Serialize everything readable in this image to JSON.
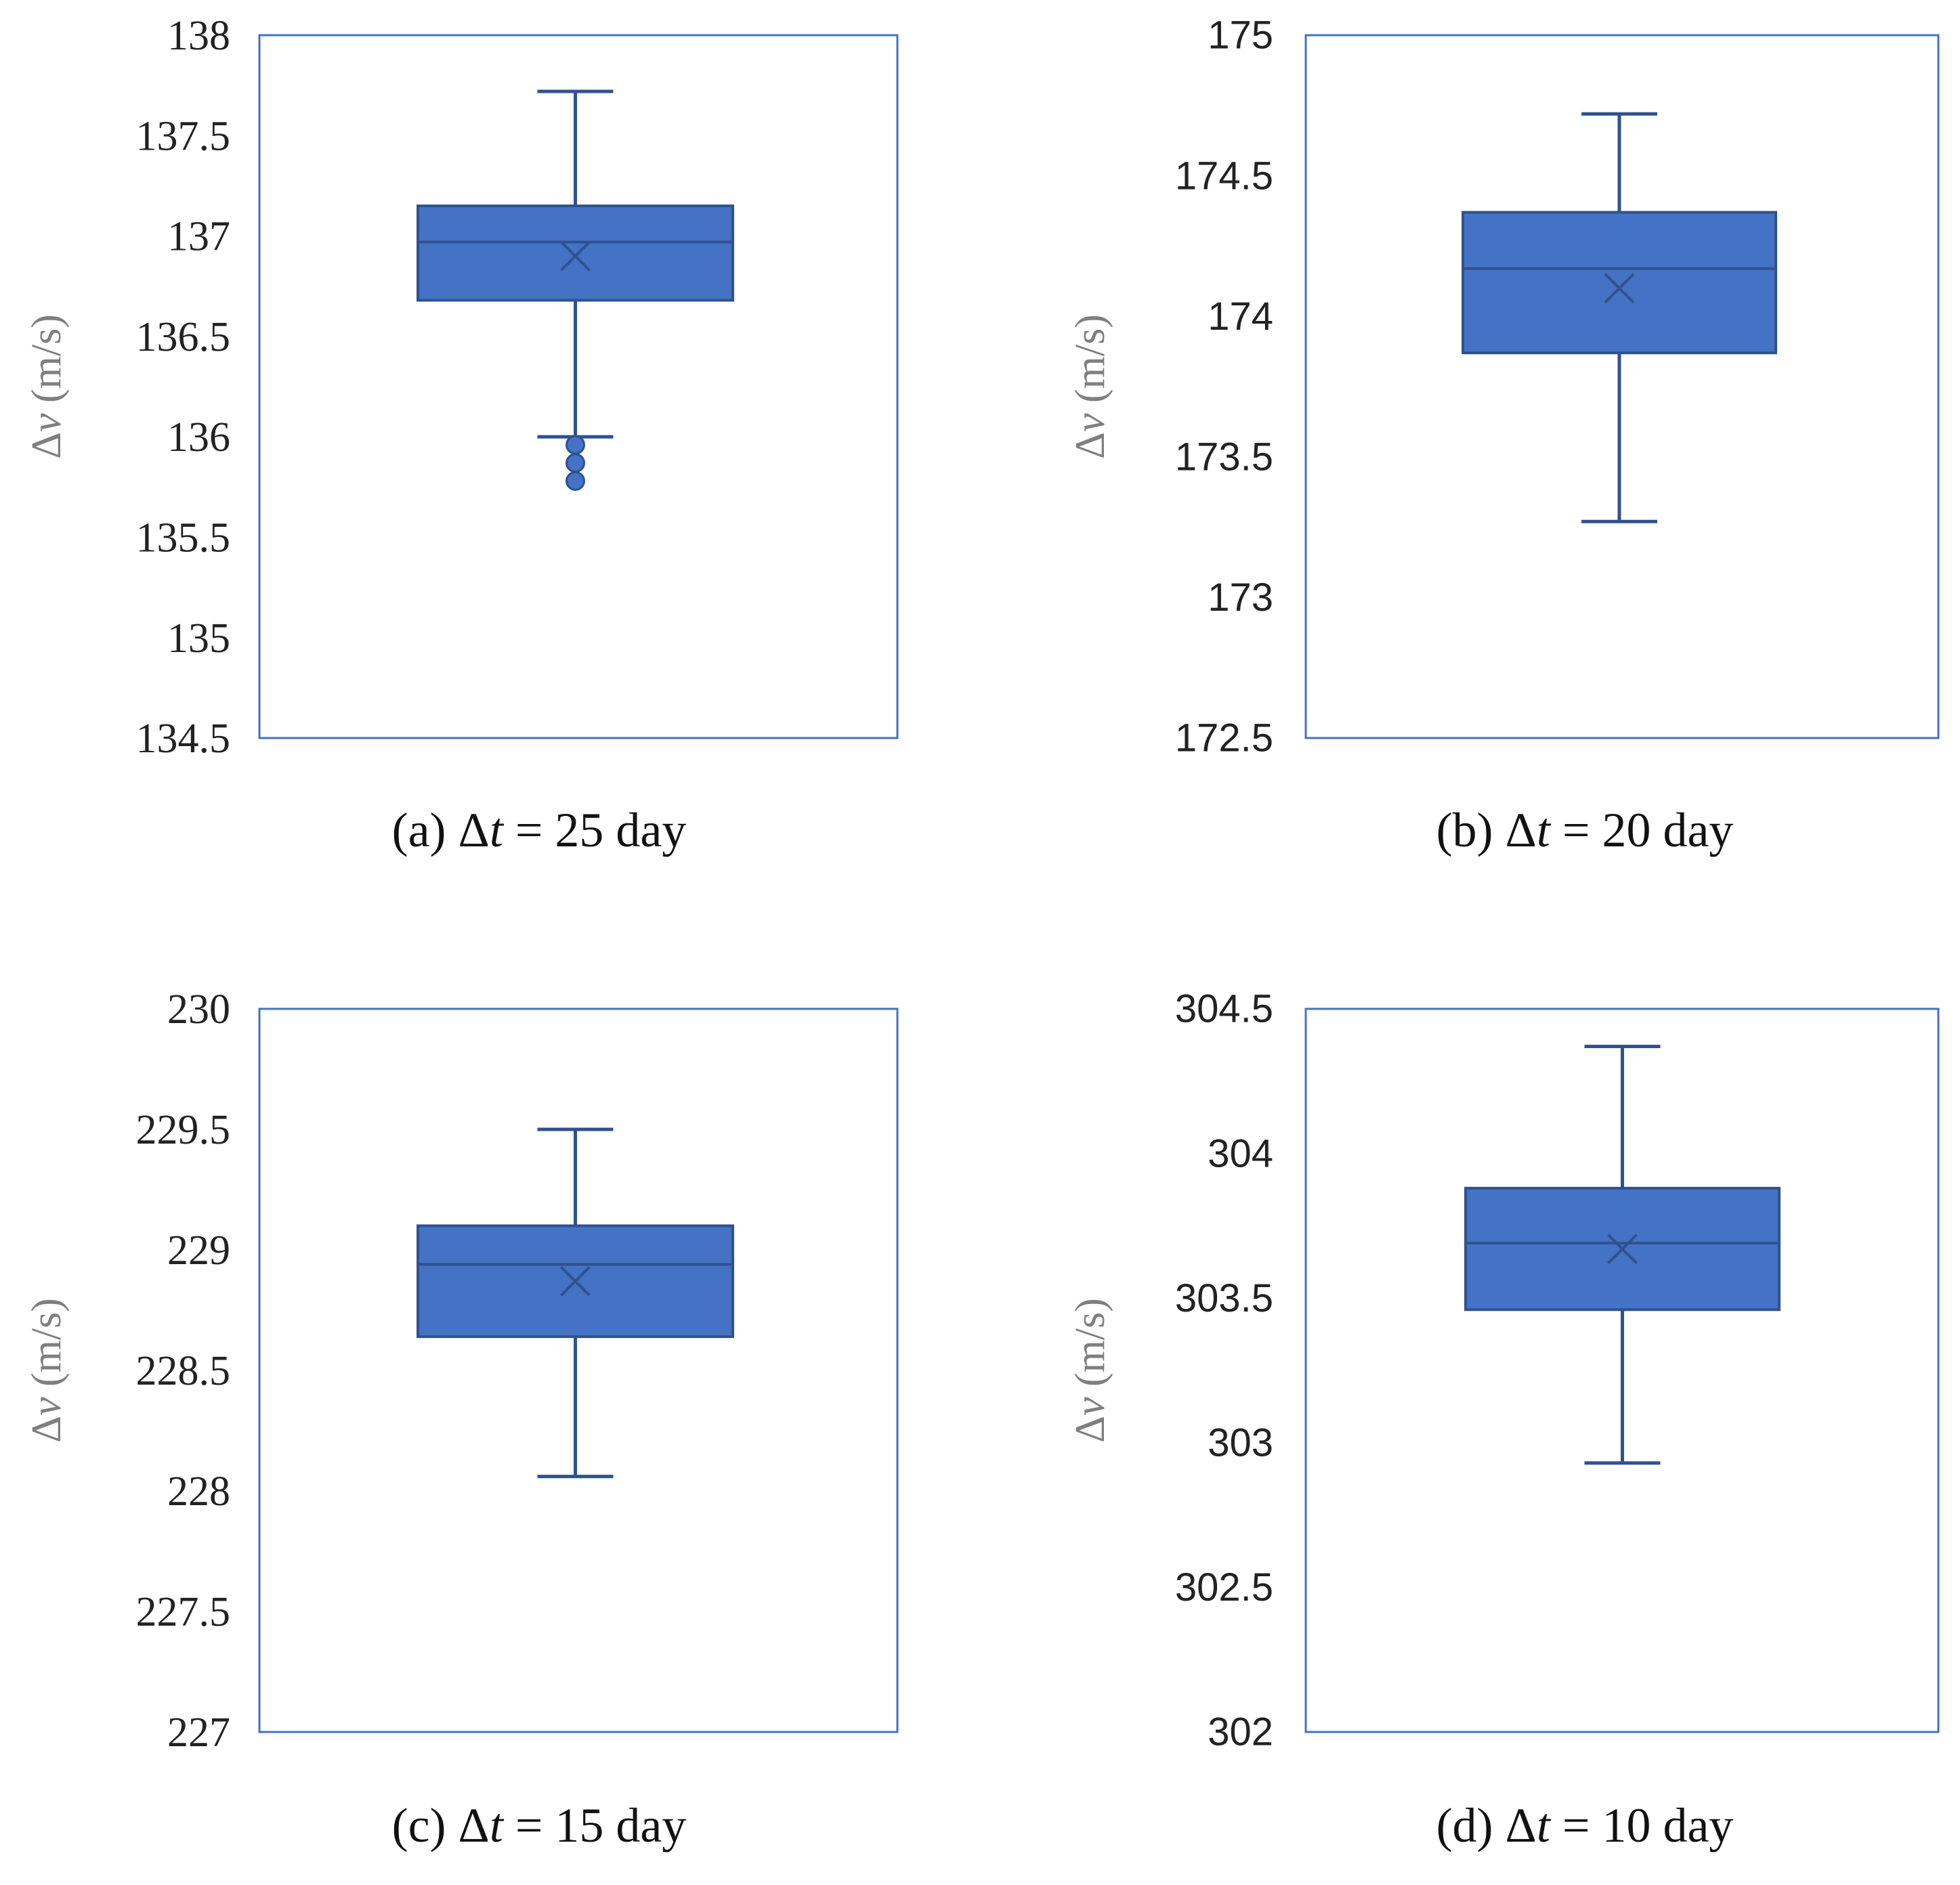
{
  "chart_data": [
    {
      "type": "box",
      "panel": "a",
      "caption_prefix": "(a) Δ",
      "caption_var": "t",
      "caption_suffix": " = 25 day",
      "ylabel_symbol": "Δ",
      "ylabel_var": "v",
      "ylabel_unit": " (m/s)",
      "ylim": [
        134.5,
        138
      ],
      "ticks": [
        "138",
        "137.5",
        "137",
        "136.5",
        "136",
        "135.5",
        "135",
        "134.5"
      ],
      "tick_values": [
        138,
        137.5,
        137,
        136.5,
        136,
        135.5,
        135,
        134.5
      ],
      "tick_font": "serif",
      "box": {
        "whisker_low": 136.0,
        "q1": 136.68,
        "median": 136.97,
        "q3": 137.15,
        "whisker_high": 137.72,
        "mean": 136.9
      },
      "outliers": [
        135.96,
        135.87,
        135.78
      ]
    },
    {
      "type": "box",
      "panel": "b",
      "caption_prefix": "(b) Δ",
      "caption_var": "t",
      "caption_suffix": " = 20 day",
      "ylabel_symbol": "Δ",
      "ylabel_var": "v",
      "ylabel_unit": " (m/s)",
      "ylim": [
        172.5,
        175
      ],
      "ticks": [
        "175",
        "174.5",
        "174",
        "173.5",
        "173",
        "172.5"
      ],
      "tick_values": [
        175,
        174.5,
        174,
        173.5,
        173,
        172.5
      ],
      "tick_font": "sans",
      "box": {
        "whisker_low": 173.27,
        "q1": 173.87,
        "median": 174.17,
        "q3": 174.37,
        "whisker_high": 174.72,
        "mean": 174.1
      },
      "outliers": []
    },
    {
      "type": "box",
      "panel": "c",
      "caption_prefix": "(c) Δ",
      "caption_var": "t",
      "caption_suffix": " = 15 day",
      "ylabel_symbol": "Δ",
      "ylabel_var": "v",
      "ylabel_unit": " (m/s)",
      "ylim": [
        227,
        230
      ],
      "ticks": [
        "230",
        "229.5",
        "229",
        "228.5",
        "228",
        "227.5",
        "227"
      ],
      "tick_values": [
        230,
        229.5,
        229,
        228.5,
        228,
        227.5,
        227
      ],
      "tick_font": "serif",
      "box": {
        "whisker_low": 228.06,
        "q1": 228.64,
        "median": 228.94,
        "q3": 229.1,
        "whisker_high": 229.5,
        "mean": 228.87
      },
      "outliers": []
    },
    {
      "type": "box",
      "panel": "d",
      "caption_prefix": "(d) Δ",
      "caption_var": "t",
      "caption_suffix": " = 10 day",
      "ylabel_symbol": "Δ",
      "ylabel_var": "v",
      "ylabel_unit": " (m/s)",
      "ylim": [
        302,
        304.5
      ],
      "ticks": [
        "304.5",
        "304",
        "303.5",
        "303",
        "302.5",
        "302"
      ],
      "tick_values": [
        304.5,
        304,
        303.5,
        303,
        302.5,
        302
      ],
      "tick_font": "sans",
      "box": {
        "whisker_low": 302.93,
        "q1": 303.46,
        "median": 303.69,
        "q3": 303.88,
        "whisker_high": 304.37,
        "mean": 303.67
      },
      "outliers": []
    }
  ],
  "colors": {
    "box_fill": "#4472c4",
    "box_stroke": "#2f528f",
    "frame": "#4472c4",
    "tick_text": "#222222",
    "axis_label": "#7f7f7f",
    "caption": "#111111"
  }
}
